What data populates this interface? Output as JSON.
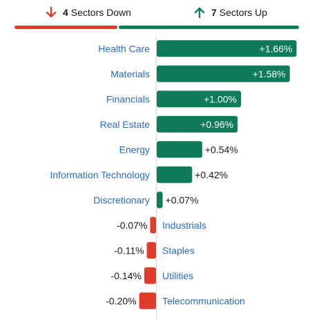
{
  "header": {
    "down": {
      "count": "4",
      "label": "Sectors Down",
      "icon": "arrow-down-icon"
    },
    "up": {
      "count": "7",
      "label": "Sectors Up",
      "icon": "arrow-up-icon"
    }
  },
  "colors": {
    "up": "#0f7b5a",
    "down": "#e03c2b",
    "label": "#2b6cc4",
    "text": "#1a1a1a"
  },
  "chart_data": {
    "type": "bar",
    "categories": [
      "Health Care",
      "Materials",
      "Financials",
      "Real Estate",
      "Energy",
      "Information Technology",
      "Discretionary",
      "Industrials",
      "Staples",
      "Utilities",
      "Telecommunication"
    ],
    "values": [
      1.66,
      1.58,
      1.0,
      0.96,
      0.54,
      0.42,
      0.07,
      -0.07,
      -0.11,
      -0.14,
      -0.2
    ],
    "value_labels": [
      "+1.66%",
      "+1.58%",
      "+1.00%",
      "+0.96%",
      "+0.54%",
      "+0.42%",
      "+0.07%",
      "-0.07%",
      "-0.11%",
      "-0.14%",
      "-0.20%"
    ],
    "orientation": "horizontal",
    "unit": "%",
    "grid": false,
    "legend": "none"
  }
}
